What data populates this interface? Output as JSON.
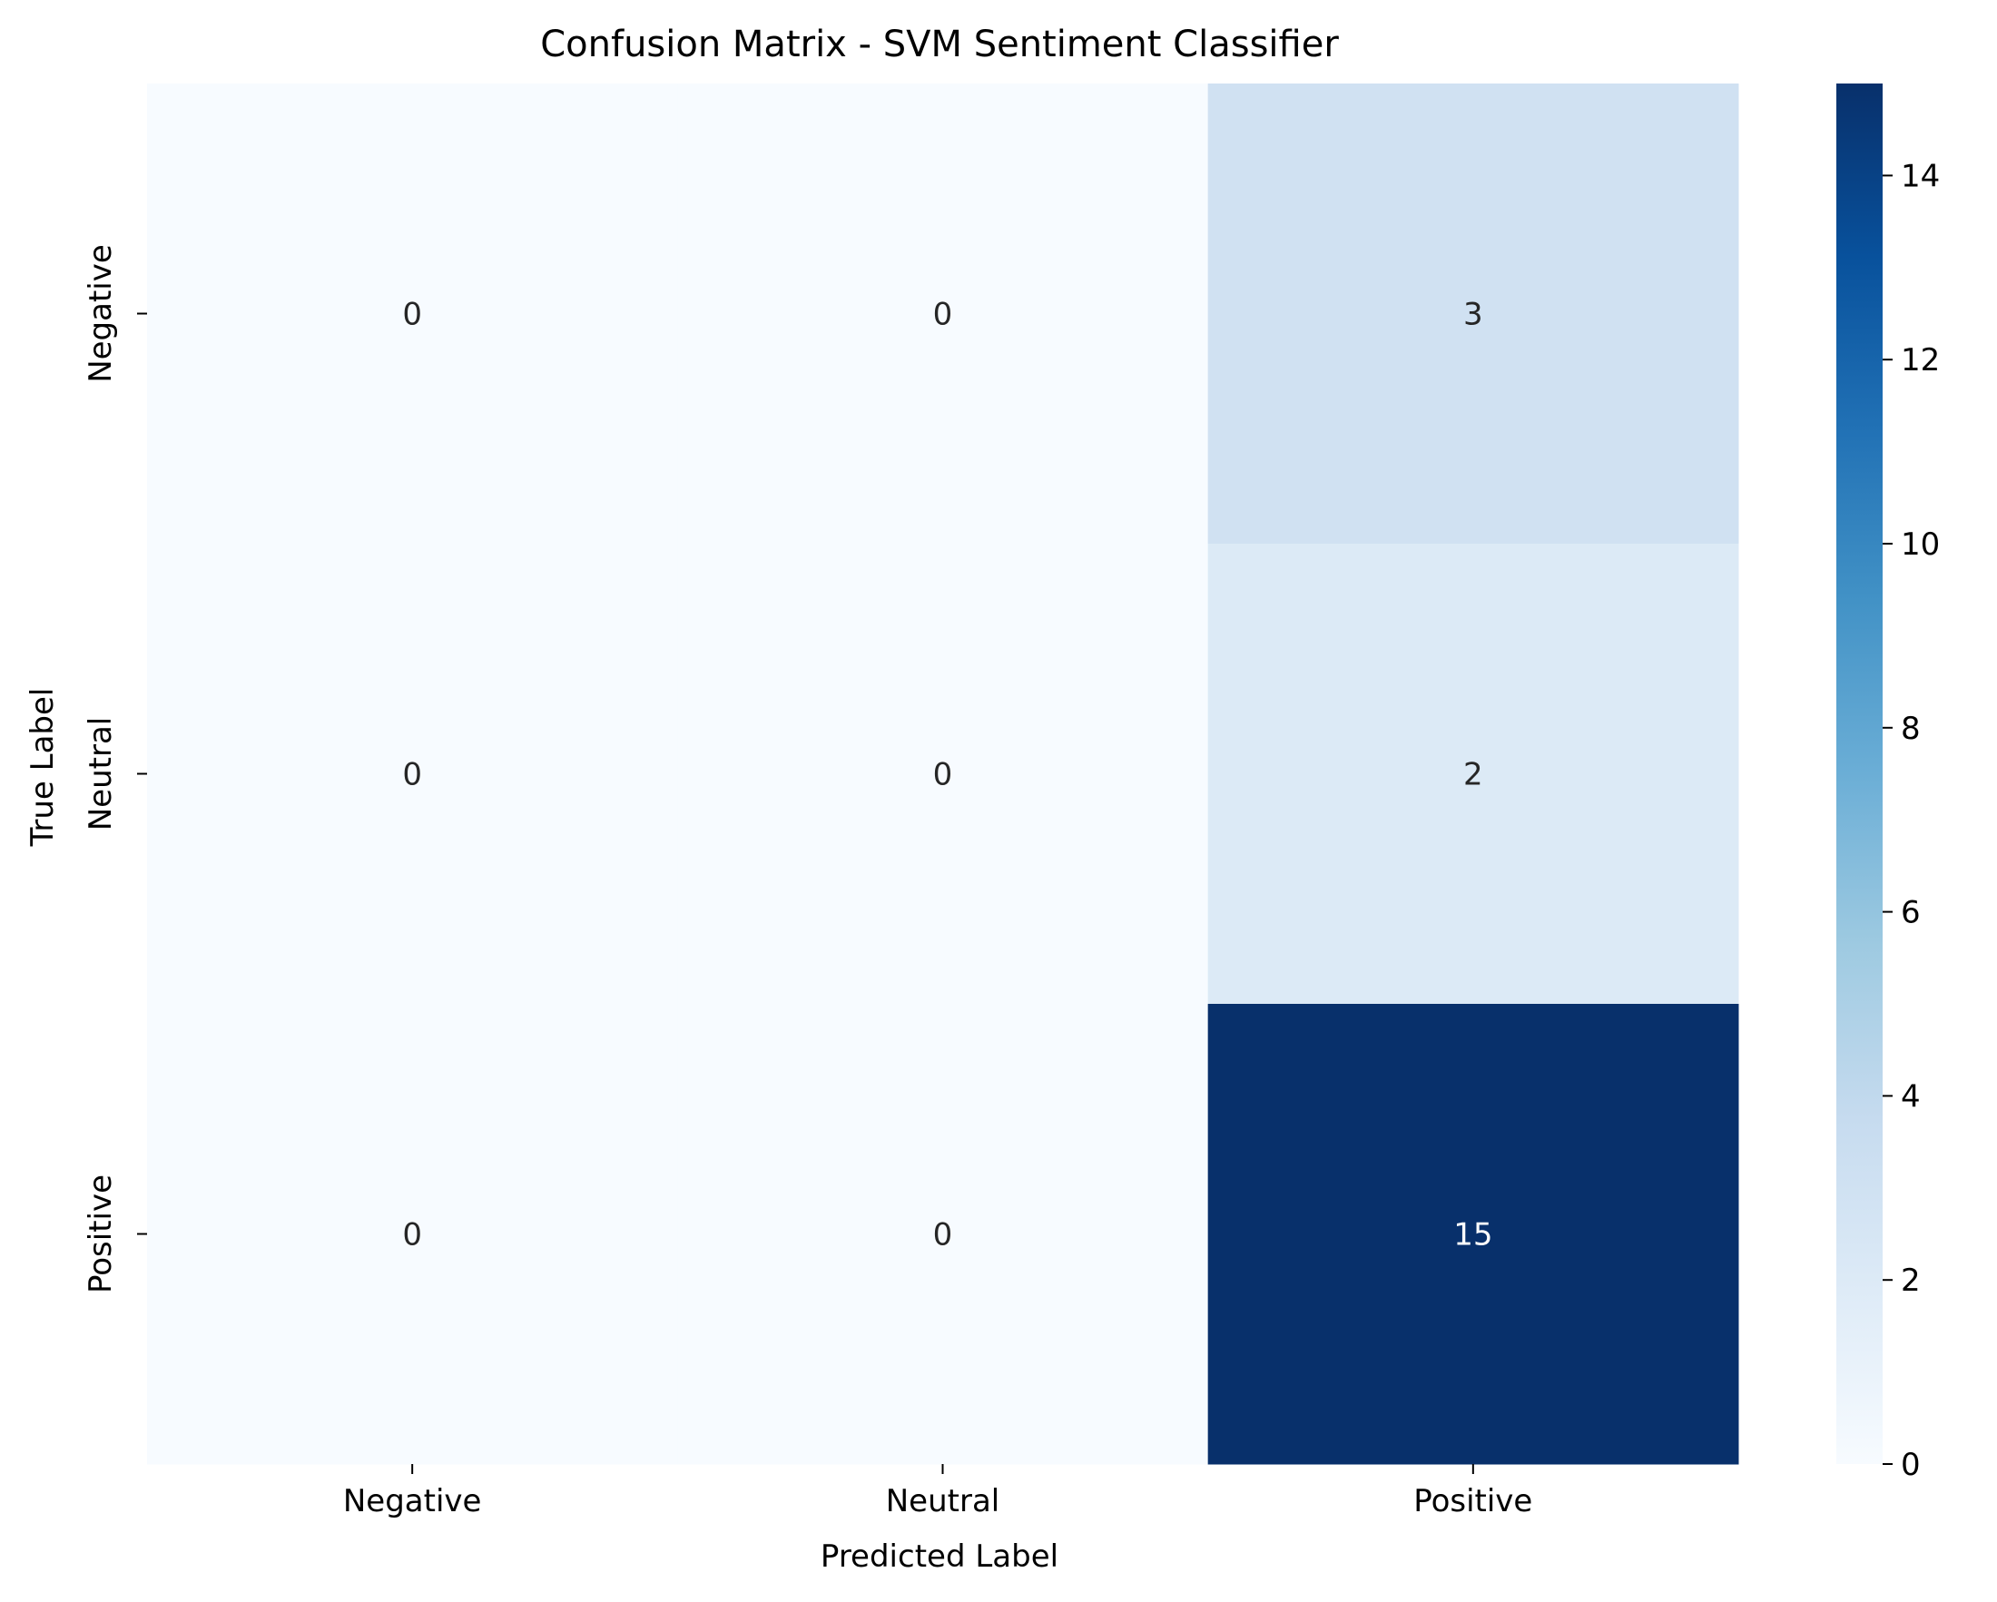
{
  "chart_data": {
    "type": "heatmap",
    "title": "Confusion Matrix - SVM Sentiment Classifier",
    "xlabel": "Predicted Label",
    "ylabel": "True Label",
    "x_categories": [
      "Negative",
      "Neutral",
      "Positive"
    ],
    "y_categories": [
      "Negative",
      "Neutral",
      "Positive"
    ],
    "values": [
      [
        0,
        0,
        3
      ],
      [
        0,
        0,
        2
      ],
      [
        0,
        0,
        15
      ]
    ],
    "colormap": "Blues",
    "color_range": [
      0,
      15
    ],
    "colorbar_ticks": [
      0,
      2,
      4,
      6,
      8,
      10,
      12,
      14
    ],
    "grid": false,
    "annotation_dark_color": "#262626",
    "annotation_light_color": "#ffffff",
    "cmap_stops": [
      {
        "v": 0.0,
        "color": "#f7fbff"
      },
      {
        "v": 0.125,
        "color": "#deebf7"
      },
      {
        "v": 0.25,
        "color": "#c6dbef"
      },
      {
        "v": 0.375,
        "color": "#9ecae1"
      },
      {
        "v": 0.5,
        "color": "#6baed6"
      },
      {
        "v": 0.625,
        "color": "#4292c6"
      },
      {
        "v": 0.75,
        "color": "#2171b5"
      },
      {
        "v": 0.875,
        "color": "#08519c"
      },
      {
        "v": 1.0,
        "color": "#08306b"
      }
    ]
  }
}
